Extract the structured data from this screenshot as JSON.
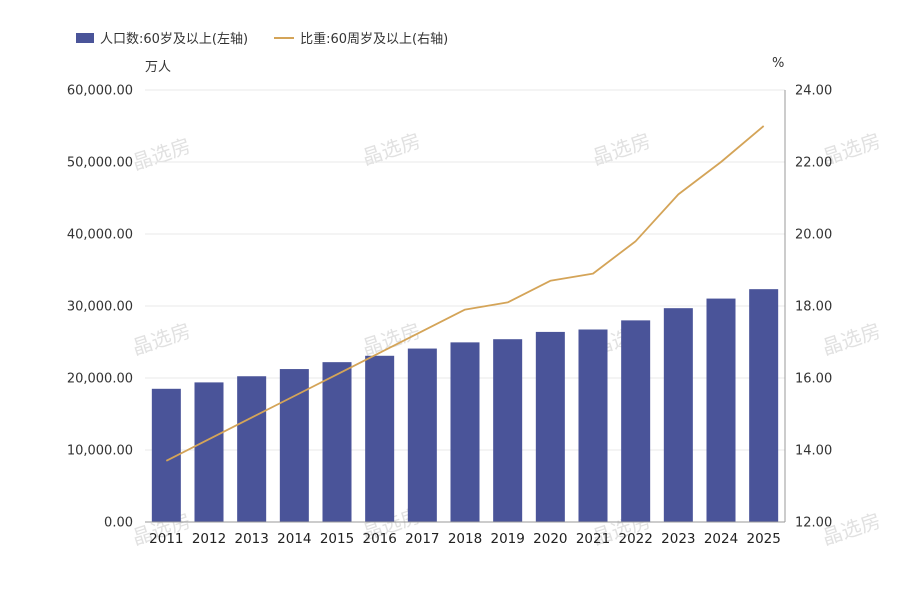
{
  "legend": {
    "bar_label": "人口数:60岁及以上(左轴)",
    "line_label": "比重:60周岁及以上(右轴)"
  },
  "units": {
    "left": "万人",
    "right": "%"
  },
  "watermark": "晶选房",
  "colors": {
    "bar": "#4a5499",
    "line": "#d4a458",
    "grid": "#e8e8e8",
    "axis": "#999999"
  },
  "chart_data": {
    "type": "bar+line",
    "categories": [
      "2011",
      "2012",
      "2013",
      "2014",
      "2015",
      "2016",
      "2017",
      "2018",
      "2019",
      "2020",
      "2021",
      "2022",
      "2023",
      "2024",
      "2025"
    ],
    "series": [
      {
        "name": "人口数:60岁及以上(左轴)",
        "type": "bar",
        "axis": "left",
        "values": [
          18500,
          19390,
          20243,
          21242,
          22200,
          23086,
          24090,
          24949,
          25388,
          26402,
          26736,
          28004,
          29697,
          31031,
          32338
        ]
      },
      {
        "name": "比重:60周岁及以上(右轴)",
        "type": "line",
        "axis": "right",
        "values": [
          13.7,
          14.3,
          14.9,
          15.5,
          16.1,
          16.7,
          17.3,
          17.9,
          18.1,
          18.7,
          18.9,
          19.8,
          21.1,
          22.0,
          23.0
        ]
      }
    ],
    "left_axis": {
      "label": "万人",
      "min": 0,
      "max": 60000,
      "ticks": [
        "0.00",
        "10,000.00",
        "20,000.00",
        "30,000.00",
        "40,000.00",
        "50,000.00",
        "60,000.00"
      ]
    },
    "right_axis": {
      "label": "%",
      "min": 12,
      "max": 24,
      "ticks": [
        "12.00",
        "14.00",
        "16.00",
        "18.00",
        "20.00",
        "22.00",
        "24.00"
      ]
    },
    "grid": true,
    "legend_position": "top-left"
  }
}
